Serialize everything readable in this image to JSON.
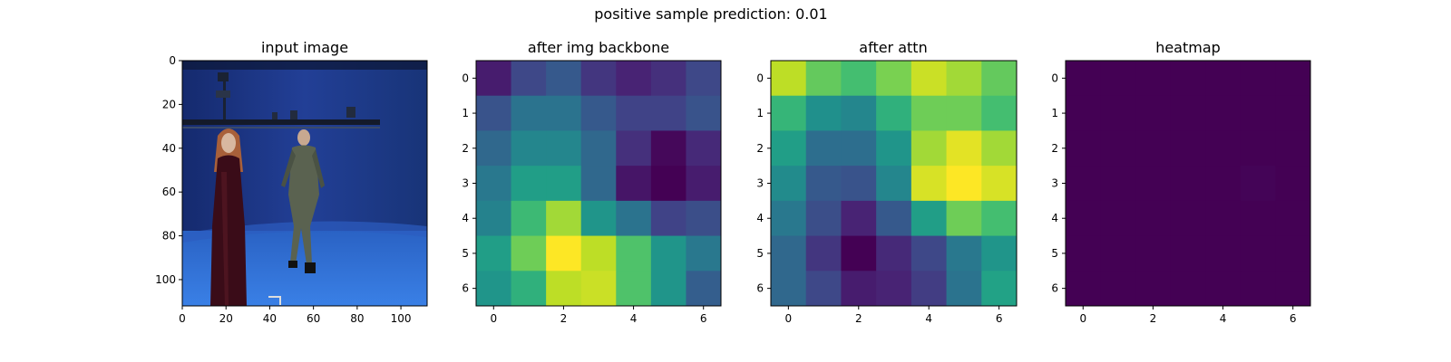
{
  "suptitle": "positive sample     prediction: 0.01",
  "colors": {
    "stage_wall": "#1f3f8f",
    "stage_floor": "#2f6fd6",
    "rig": "#141a2a",
    "woman_dress": "#3a0c18",
    "woman_hair": "#a8603a",
    "man_suit": "#5a6250",
    "skin": "#d8b8a0"
  },
  "chart_data": [
    {
      "type": "image",
      "title": "input image",
      "xticks": [
        0,
        20,
        40,
        60,
        80,
        100
      ],
      "yticks": [
        0,
        20,
        40,
        60,
        80,
        100
      ],
      "xlim": [
        0,
        112
      ],
      "ylim": [
        112,
        0
      ],
      "content": "two people standing on a blue motion-capture stage"
    },
    {
      "type": "heatmap",
      "title": "after img backbone",
      "colormap": "viridis",
      "xticks": [
        0,
        2,
        4,
        6
      ],
      "yticks": [
        0,
        1,
        2,
        3,
        4,
        5,
        6
      ],
      "values": [
        [
          0.08,
          0.22,
          0.28,
          0.16,
          0.1,
          0.14,
          0.22
        ],
        [
          0.26,
          0.38,
          0.38,
          0.28,
          0.2,
          0.2,
          0.26
        ],
        [
          0.34,
          0.46,
          0.46,
          0.34,
          0.14,
          0.02,
          0.12
        ],
        [
          0.4,
          0.56,
          0.56,
          0.34,
          0.06,
          0.0,
          0.08
        ],
        [
          0.44,
          0.68,
          0.86,
          0.52,
          0.38,
          0.2,
          0.24
        ],
        [
          0.56,
          0.78,
          1.0,
          0.9,
          0.72,
          0.52,
          0.4
        ],
        [
          0.52,
          0.64,
          0.9,
          0.92,
          0.72,
          0.52,
          0.3
        ]
      ]
    },
    {
      "type": "heatmap",
      "title": "after attn",
      "colormap": "viridis",
      "xticks": [
        0,
        2,
        4,
        6
      ],
      "yticks": [
        0,
        1,
        2,
        3,
        4,
        5,
        6
      ],
      "values": [
        [
          0.9,
          0.76,
          0.7,
          0.8,
          0.92,
          0.86,
          0.76
        ],
        [
          0.66,
          0.5,
          0.46,
          0.64,
          0.78,
          0.78,
          0.7
        ],
        [
          0.56,
          0.36,
          0.36,
          0.52,
          0.86,
          0.96,
          0.86
        ],
        [
          0.48,
          0.28,
          0.26,
          0.46,
          0.94,
          1.0,
          0.94
        ],
        [
          0.4,
          0.24,
          0.1,
          0.28,
          0.56,
          0.78,
          0.7
        ],
        [
          0.34,
          0.16,
          0.0,
          0.12,
          0.22,
          0.4,
          0.52
        ],
        [
          0.34,
          0.22,
          0.08,
          0.1,
          0.18,
          0.38,
          0.58
        ]
      ]
    },
    {
      "type": "heatmap",
      "title": "heatmap",
      "colormap": "viridis",
      "xticks": [
        0,
        2,
        4,
        6
      ],
      "yticks": [
        0,
        1,
        2,
        3,
        4,
        5,
        6
      ],
      "values": [
        [
          0,
          0,
          0,
          0,
          0,
          0,
          0
        ],
        [
          0,
          0,
          0,
          0,
          0,
          0,
          0
        ],
        [
          0,
          0,
          0,
          0,
          0,
          0,
          0
        ],
        [
          0,
          0,
          0,
          0,
          0,
          0.01,
          0
        ],
        [
          0,
          0,
          0,
          0,
          0,
          0,
          0
        ],
        [
          0,
          0,
          0,
          0,
          0,
          0,
          0
        ],
        [
          0,
          0,
          0,
          0,
          0,
          0,
          0
        ]
      ]
    }
  ]
}
